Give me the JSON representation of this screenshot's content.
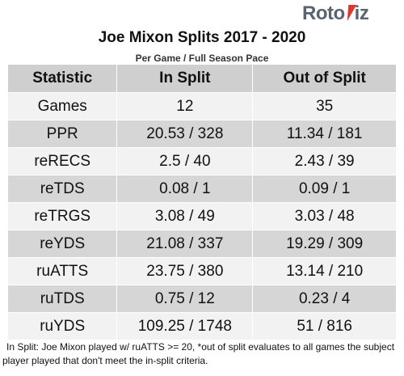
{
  "logo": {
    "part1": "Roto",
    "part2": "iz"
  },
  "title": "Joe Mixon Splits 2017 - 2020",
  "subtitle": "Per Game / Full Season Pace",
  "table": {
    "headers": [
      "Statistic",
      "In Split",
      "Out of Split"
    ],
    "rows": [
      [
        "Games",
        "12",
        "35"
      ],
      [
        "PPR",
        "20.53 / 328",
        "11.34 / 181"
      ],
      [
        "reRECS",
        "2.5 / 40",
        "2.43 / 39"
      ],
      [
        "reTDS",
        "0.08 / 1",
        "0.09 / 1"
      ],
      [
        "reTRGS",
        "3.08 / 49",
        "3.03 / 48"
      ],
      [
        "reYDS",
        "21.08 / 337",
        "19.29 / 309"
      ],
      [
        "ruATTS",
        "23.75 / 380",
        "13.14 / 210"
      ],
      [
        "ruTDS",
        "0.75 / 12",
        "0.23 / 4"
      ],
      [
        "ruYDS",
        "109.25 / 1748",
        "51 / 816"
      ]
    ]
  },
  "footnote": {
    "line1": "In Split: Joe Mixon played w/ ruATTS >= 20,  *out of split evaluates to all games the subject",
    "line2": "player played that don't meet the in-split criteria."
  },
  "colors": {
    "header_bg": "#cfcfcf",
    "row_light": "#f2f2f2",
    "row_dark": "#d6d6d6",
    "logo_accent": "#e0362c",
    "logo_text": "#5a6470"
  },
  "icons": {
    "logo_bolt": "lightning-bolt-icon"
  }
}
